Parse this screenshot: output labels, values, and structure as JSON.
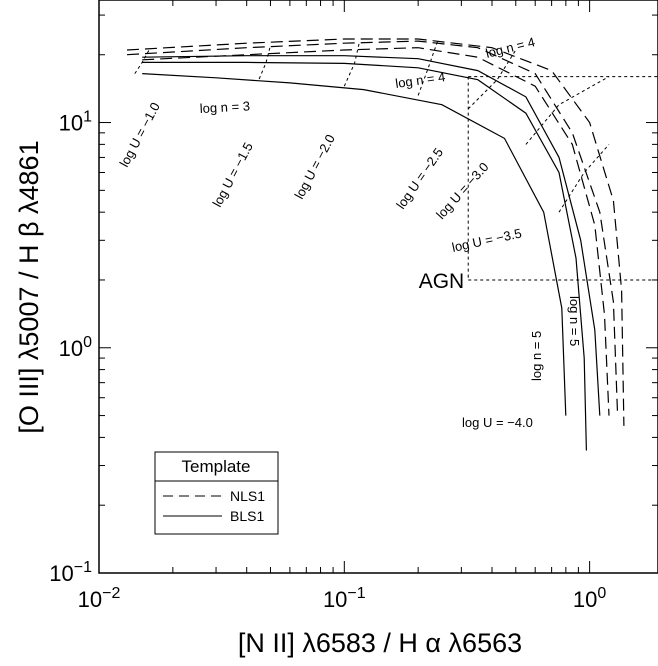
{
  "chart_data": {
    "type": "line",
    "xlabel": "[N II] λ6583 / H α λ6563",
    "ylabel": "[O III] λ5007 / H β λ4861",
    "xscale": "log",
    "yscale": "log",
    "xlim": [
      0.01,
      1.9
    ],
    "ylim": [
      0.1,
      35
    ],
    "grid": false,
    "x_ticks": [
      {
        "value": 0.01,
        "base": "10",
        "exp": "−2"
      },
      {
        "value": 0.1,
        "base": "10",
        "exp": "−1"
      },
      {
        "value": 1,
        "base": "10",
        "exp": "0"
      }
    ],
    "y_ticks": [
      {
        "value": 0.1,
        "base": "10",
        "exp": "−1"
      },
      {
        "value": 1,
        "base": "10",
        "exp": "0"
      },
      {
        "value": 10,
        "base": "10",
        "exp": "1"
      }
    ],
    "legend": {
      "title": "Template",
      "position": "bottom-left",
      "entries": [
        {
          "label": "NLS1",
          "style": "dashed"
        },
        {
          "label": "BLS1",
          "style": "solid"
        }
      ]
    },
    "agn_region": {
      "label": "AGN",
      "x_min": 0.32,
      "y_min": 2.0,
      "y_max": 16.0
    },
    "series": [
      {
        "name": "BLS1",
        "density": "log n = 3",
        "style": "solid",
        "x": [
          0.015,
          0.03,
          0.06,
          0.12,
          0.25,
          0.45,
          0.65,
          0.77,
          0.8
        ],
        "y": [
          16.5,
          15.8,
          15.0,
          14.0,
          12.0,
          8.5,
          4.0,
          1.5,
          0.5
        ]
      },
      {
        "name": "BLS1",
        "density": "log n = 4",
        "style": "solid",
        "x": [
          0.015,
          0.04,
          0.1,
          0.2,
          0.35,
          0.55,
          0.75,
          0.88,
          0.95,
          0.97
        ],
        "y": [
          18.5,
          18.5,
          18.3,
          17.5,
          15.5,
          11.0,
          6.0,
          2.5,
          0.9,
          0.35
        ]
      },
      {
        "name": "BLS1",
        "density": "log n = 5",
        "style": "solid",
        "x": [
          0.015,
          0.04,
          0.1,
          0.2,
          0.35,
          0.55,
          0.75,
          0.92,
          1.05,
          1.1
        ],
        "y": [
          19.5,
          19.8,
          19.8,
          19.2,
          17.0,
          13.0,
          7.0,
          3.0,
          1.2,
          0.5
        ]
      },
      {
        "name": "NLS1",
        "density": "log n = 3",
        "style": "dashed",
        "x": [
          0.015,
          0.04,
          0.1,
          0.2,
          0.35,
          0.6,
          0.85,
          1.05,
          1.15,
          1.2
        ],
        "y": [
          19.0,
          20.0,
          21.0,
          21.5,
          19.5,
          14.5,
          8.0,
          3.5,
          1.4,
          0.5
        ]
      },
      {
        "name": "NLS1",
        "density": "log n = 4",
        "style": "dashed",
        "x": [
          0.013,
          0.04,
          0.1,
          0.2,
          0.35,
          0.6,
          0.85,
          1.1,
          1.25,
          1.3
        ],
        "y": [
          20.0,
          21.5,
          22.5,
          23.0,
          21.5,
          16.5,
          9.0,
          4.0,
          1.6,
          0.5
        ]
      },
      {
        "name": "NLS1",
        "density": "log n = 5",
        "style": "dashed",
        "x": [
          0.013,
          0.04,
          0.1,
          0.2,
          0.4,
          0.7,
          1.0,
          1.25,
          1.35,
          1.38
        ],
        "y": [
          21.0,
          22.5,
          23.5,
          23.5,
          21.5,
          17.0,
          10.0,
          4.5,
          1.8,
          0.45
        ]
      }
    ],
    "ionization_lines": [
      {
        "label": "log U = −1.0",
        "x": [
          0.014,
          0.015,
          0.016
        ],
        "y": [
          16.5,
          18.5,
          21.0
        ]
      },
      {
        "label": "log U = −1.5",
        "x": [
          0.045,
          0.048,
          0.05
        ],
        "y": [
          15.6,
          18.5,
          22.0
        ]
      },
      {
        "label": "log U = −2.0",
        "x": [
          0.1,
          0.11,
          0.115
        ],
        "y": [
          14.5,
          18.3,
          22.5
        ]
      },
      {
        "label": "log U = −2.5",
        "x": [
          0.2,
          0.22,
          0.24
        ],
        "y": [
          13.2,
          17.5,
          23.0
        ]
      },
      {
        "label": "log U = −3.0",
        "x": [
          0.32,
          0.42,
          0.5
        ],
        "y": [
          11.5,
          15.5,
          21.0
        ]
      },
      {
        "label": "log U = −3.5",
        "x": [
          0.55,
          0.75,
          1.2
        ],
        "y": [
          8.0,
          12.0,
          16.0
        ]
      },
      {
        "label": "log U = −4.0",
        "x": [
          0.75,
          0.95,
          1.2
        ],
        "y": [
          4.0,
          6.0,
          8.0
        ]
      }
    ],
    "annotations": [
      "log n = 3",
      "log n = 4",
      "log n = 4",
      "log n = 5",
      "log n = 5",
      "log U = −1.0",
      "log U = −1.5",
      "log U = −2.0",
      "log U = −2.5",
      "log U = −3.0",
      "log U = −3.5",
      "log U = −4.0",
      "AGN"
    ]
  }
}
